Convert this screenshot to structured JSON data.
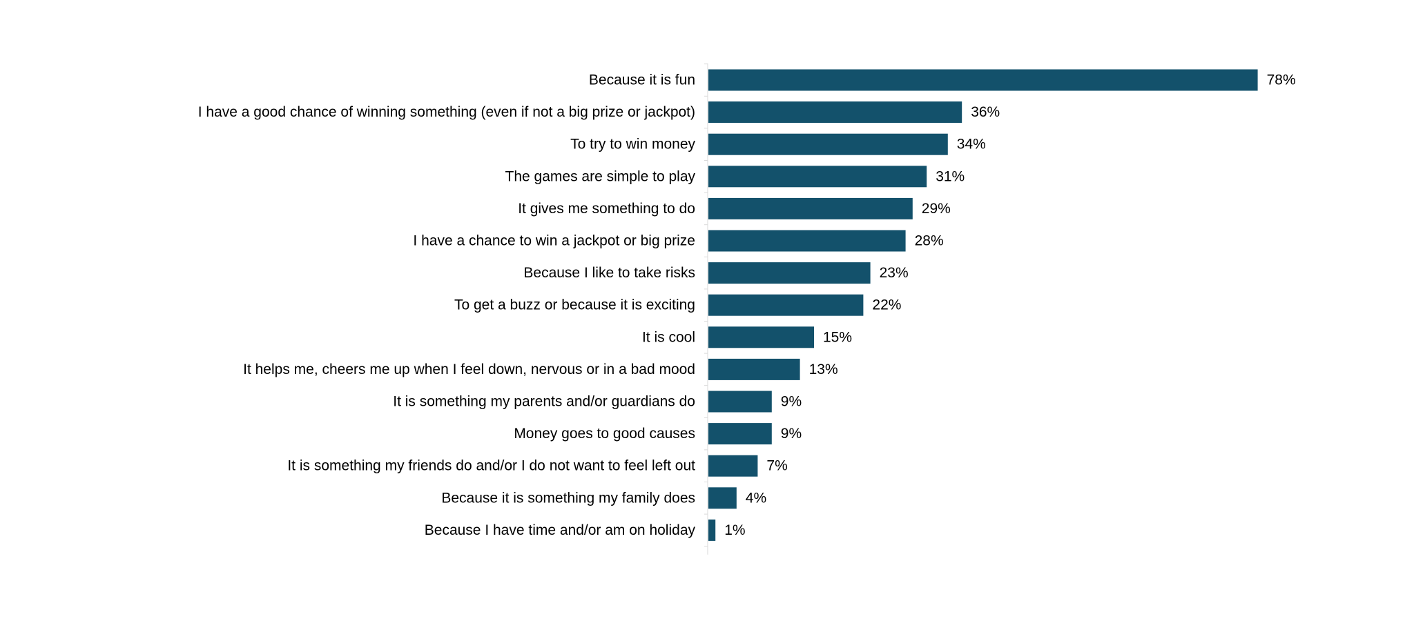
{
  "chart_data": {
    "type": "bar",
    "orientation": "horizontal",
    "categories": [
      "Because it is fun",
      "I have a good chance of winning something (even if not a big prize or jackpot)",
      "To try to win money",
      "The games are simple to play",
      "It gives me something to do",
      "I have a chance to win a jackpot or big prize",
      "Because I like to take risks",
      "To get a buzz or because it is exciting",
      "It is cool",
      "It helps me, cheers me up when I feel down, nervous or in a bad mood",
      "It is something my parents and/or guardians do",
      "Money goes to good causes",
      "It is something my friends do and/or I do not want to feel left out",
      "Because it is something my family does",
      "Because I have time and/or am on holiday"
    ],
    "values": [
      78,
      36,
      34,
      31,
      29,
      28,
      23,
      22,
      15,
      13,
      9,
      9,
      7,
      4,
      1
    ],
    "value_labels": [
      "78%",
      "36%",
      "34%",
      "31%",
      "29%",
      "28%",
      "23%",
      "22%",
      "15%",
      "13%",
      "9%",
      "9%",
      "7%",
      "4%",
      "1%"
    ],
    "title": "",
    "xlabel": "",
    "ylabel": "",
    "xlim": [
      0,
      100
    ],
    "grid": false,
    "legend": "none",
    "bar_color": "#13516b",
    "axis_color": "#d9d9d9"
  }
}
